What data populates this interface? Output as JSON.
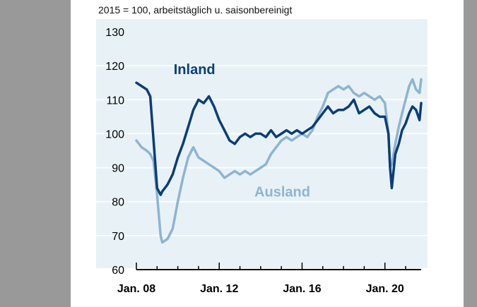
{
  "chart_data": {
    "type": "line",
    "subtitle": "2015 = 100, arbeitstäglich u. saisonbereinigt",
    "title": "",
    "xlabel": "",
    "ylabel": "",
    "ylim": [
      60,
      130
    ],
    "yticks": [
      60,
      70,
      80,
      90,
      100,
      110,
      120,
      130
    ],
    "xlim": [
      2008.0,
      2021.75
    ],
    "xticks": [
      {
        "label": "Jan. 08",
        "value": 2008.0
      },
      {
        "label": "Jan. 12",
        "value": 2012.0
      },
      {
        "label": "Jan. 16",
        "value": 2016.0
      },
      {
        "label": "Jan. 20",
        "value": 2020.0
      }
    ],
    "grid": true,
    "colors": {
      "plot_background": "#e8f2f6",
      "grid": "#ffffff",
      "inland": "#0b3d7a",
      "ausland": "#8db4d3"
    },
    "series": [
      {
        "name": "Inland",
        "color": "#0b3d7a",
        "x": [
          2008.0,
          2008.25,
          2008.5,
          2008.67,
          2008.83,
          2009.0,
          2009.17,
          2009.25,
          2009.5,
          2009.75,
          2010.0,
          2010.25,
          2010.5,
          2010.75,
          2011.0,
          2011.25,
          2011.5,
          2011.75,
          2012.0,
          2012.25,
          2012.5,
          2012.75,
          2013.0,
          2013.25,
          2013.5,
          2013.75,
          2014.0,
          2014.25,
          2014.5,
          2014.75,
          2015.0,
          2015.25,
          2015.5,
          2015.75,
          2016.0,
          2016.25,
          2016.5,
          2016.75,
          2017.0,
          2017.25,
          2017.5,
          2017.75,
          2018.0,
          2018.25,
          2018.5,
          2018.75,
          2019.0,
          2019.25,
          2019.5,
          2019.75,
          2020.0,
          2020.17,
          2020.25,
          2020.33,
          2020.5,
          2020.67,
          2020.83,
          2021.0,
          2021.17,
          2021.33,
          2021.5,
          2021.67,
          2021.75
        ],
        "values": [
          115,
          114,
          113,
          111,
          98,
          84,
          82,
          83,
          85,
          88,
          93,
          97,
          102,
          107,
          110,
          109,
          111,
          108,
          104,
          101,
          98,
          97,
          99,
          100,
          99,
          100,
          100,
          99,
          101,
          99,
          100,
          101,
          100,
          101,
          100,
          101,
          102,
          104,
          106,
          108,
          106,
          107,
          107,
          108,
          110,
          106,
          107,
          108,
          106,
          105,
          105,
          100,
          90,
          84,
          94,
          97,
          101,
          103,
          106,
          108,
          107,
          104,
          109
        ]
      },
      {
        "name": "Ausland",
        "color": "#8db4d3",
        "x": [
          2008.0,
          2008.25,
          2008.5,
          2008.67,
          2008.83,
          2009.0,
          2009.17,
          2009.25,
          2009.5,
          2009.75,
          2010.0,
          2010.25,
          2010.5,
          2010.75,
          2011.0,
          2011.25,
          2011.5,
          2011.75,
          2012.0,
          2012.25,
          2012.5,
          2012.75,
          2013.0,
          2013.25,
          2013.5,
          2013.75,
          2014.0,
          2014.25,
          2014.5,
          2014.75,
          2015.0,
          2015.25,
          2015.5,
          2015.75,
          2016.0,
          2016.25,
          2016.5,
          2016.75,
          2017.0,
          2017.25,
          2017.5,
          2017.75,
          2018.0,
          2018.25,
          2018.5,
          2018.75,
          2019.0,
          2019.25,
          2019.5,
          2019.75,
          2020.0,
          2020.17,
          2020.25,
          2020.33,
          2020.5,
          2020.67,
          2020.83,
          2021.0,
          2021.17,
          2021.33,
          2021.5,
          2021.67,
          2021.75
        ],
        "values": [
          98,
          96,
          95,
          94,
          92,
          82,
          70,
          68,
          69,
          72,
          80,
          87,
          93,
          96,
          93,
          92,
          91,
          90,
          89,
          87,
          88,
          89,
          88,
          89,
          88,
          89,
          90,
          91,
          94,
          96,
          98,
          99,
          98,
          99,
          100,
          99,
          101,
          105,
          108,
          112,
          113,
          114,
          113,
          114,
          112,
          111,
          112,
          111,
          110,
          111,
          109,
          100,
          90,
          91,
          97,
          102,
          106,
          110,
          114,
          116,
          113,
          112,
          116
        ]
      }
    ],
    "annotations": [
      {
        "text": "Inland",
        "x": 2009.8,
        "y": 117.5,
        "color": "#0b3d7a"
      },
      {
        "text": "Ausland",
        "x": 2013.7,
        "y": 81.5,
        "color": "#8db4d3"
      }
    ]
  }
}
